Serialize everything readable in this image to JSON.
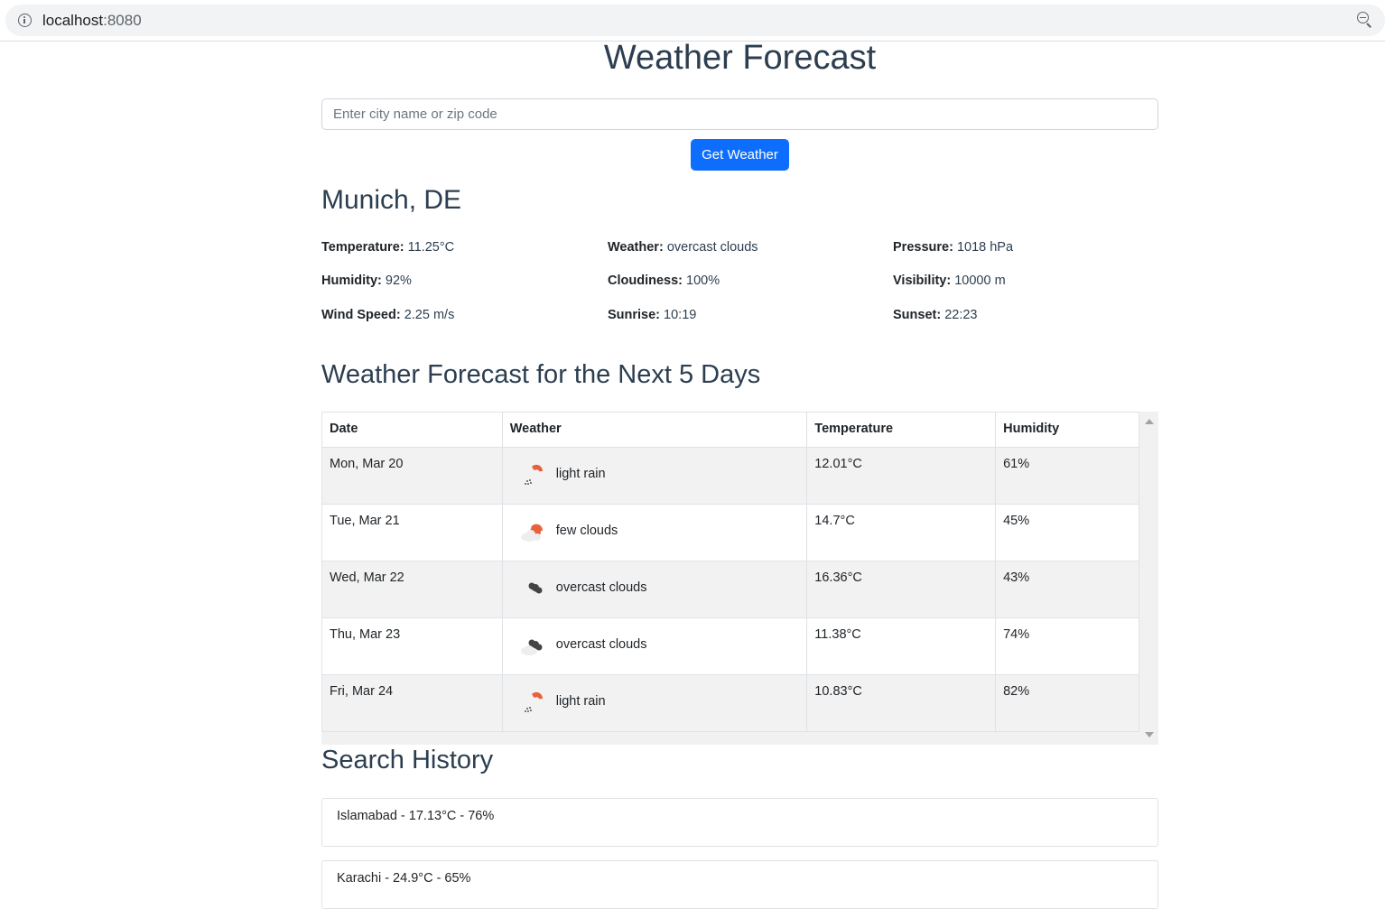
{
  "browser": {
    "host": "localhost",
    "port": ":8080"
  },
  "page": {
    "title": "Weather Forecast",
    "search": {
      "placeholder": "Enter city name or zip code",
      "value": "",
      "button_label": "Get Weather"
    }
  },
  "current": {
    "city": "Munich, DE",
    "stats": [
      {
        "label": "Temperature:",
        "value": "11.25°C"
      },
      {
        "label": "Weather:",
        "value": "overcast clouds"
      },
      {
        "label": "Pressure:",
        "value": "1018 hPa"
      },
      {
        "label": "Humidity:",
        "value": "92%"
      },
      {
        "label": "Cloudiness:",
        "value": "100%"
      },
      {
        "label": "Visibility:",
        "value": "10000 m"
      },
      {
        "label": "Wind Speed:",
        "value": "2.25 m/s"
      },
      {
        "label": "Sunrise:",
        "value": "10:19"
      },
      {
        "label": "Sunset:",
        "value": "22:23"
      }
    ]
  },
  "forecast": {
    "title": "Weather Forecast for the Next 5 Days",
    "columns": [
      "Date",
      "Weather",
      "Temperature",
      "Humidity"
    ],
    "rows": [
      {
        "date": "Mon, Mar 20",
        "weather": "light rain",
        "icon": "light-rain-icon",
        "temperature": "12.01°C",
        "humidity": "61%"
      },
      {
        "date": "Tue, Mar 21",
        "weather": "few clouds",
        "icon": "few-clouds-icon",
        "temperature": "14.7°C",
        "humidity": "45%"
      },
      {
        "date": "Wed, Mar 22",
        "weather": "overcast clouds",
        "icon": "overcast-clouds-icon",
        "temperature": "16.36°C",
        "humidity": "43%"
      },
      {
        "date": "Thu, Mar 23",
        "weather": "overcast clouds",
        "icon": "overcast-clouds-icon",
        "temperature": "11.38°C",
        "humidity": "74%"
      },
      {
        "date": "Fri, Mar 24",
        "weather": "light rain",
        "icon": "light-rain-icon",
        "temperature": "10.83°C",
        "humidity": "82%"
      }
    ]
  },
  "history": {
    "title": "Search History",
    "items": [
      "Islamabad - 17.13°C - 76%",
      "Karachi - 24.9°C - 65%"
    ]
  },
  "colors": {
    "accent": "#0d6efd",
    "heading": "#2c3e50",
    "sun": "#e8613c"
  }
}
